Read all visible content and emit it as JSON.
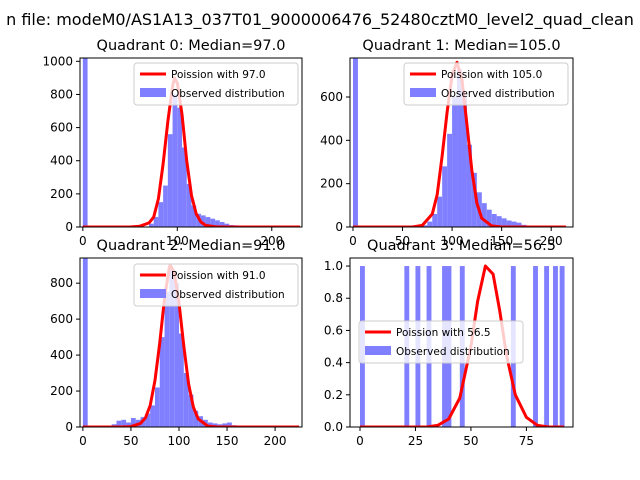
{
  "suptitle": "n file: modeM0/AS1A13_037T01_9000006476_52480cztM0_level2_quad_clean",
  "colors": {
    "fit": "#ff0000",
    "hist": "#7f7fff",
    "axis": "#000000"
  },
  "chart_data": [
    {
      "type": "histogram+line",
      "title": "Quadrant 0: Median=97.0",
      "xlim": [
        -3,
        232
      ],
      "ylim": [
        0,
        1020
      ],
      "xticks": [
        0,
        100,
        200
      ],
      "yticks": [
        0,
        200,
        400,
        600,
        800,
        1000
      ],
      "legend": [
        "Poission with 97.0",
        "Observed distribution"
      ],
      "legend_position": "upper-right",
      "hist": {
        "bin_width": 5,
        "bins": [
          [
            0,
            1020
          ],
          [
            70,
            20
          ],
          [
            75,
            60
          ],
          [
            80,
            150
          ],
          [
            85,
            250
          ],
          [
            90,
            560
          ],
          [
            95,
            800
          ],
          [
            100,
            720
          ],
          [
            105,
            480
          ],
          [
            110,
            260
          ],
          [
            115,
            130
          ],
          [
            120,
            80
          ],
          [
            125,
            70
          ],
          [
            130,
            60
          ],
          [
            135,
            50
          ],
          [
            140,
            40
          ],
          [
            145,
            30
          ],
          [
            150,
            20
          ],
          [
            155,
            12
          ],
          [
            160,
            10
          ],
          [
            165,
            8
          ],
          [
            170,
            5
          ],
          [
            180,
            4
          ],
          [
            200,
            3
          ]
        ]
      },
      "fit": {
        "peak": 900,
        "x": [
          0,
          50,
          60,
          70,
          75,
          80,
          85,
          90,
          95,
          97,
          100,
          105,
          110,
          115,
          120,
          125,
          130,
          140,
          150,
          230
        ],
        "y": [
          0,
          0,
          4,
          25,
          60,
          170,
          380,
          640,
          850,
          900,
          870,
          680,
          400,
          190,
          80,
          30,
          10,
          2,
          0,
          0
        ]
      }
    },
    {
      "type": "histogram+line",
      "title": "Quadrant 1: Median=105.0",
      "xlim": [
        -3,
        222
      ],
      "ylim": [
        0,
        780
      ],
      "xticks": [
        0,
        50,
        100,
        150,
        200
      ],
      "yticks": [
        0,
        200,
        400,
        600
      ],
      "legend": [
        "Poission with 105.0",
        "Observed distribution"
      ],
      "legend_position": "upper-right",
      "hist": {
        "bin_width": 5,
        "bins": [
          [
            0,
            780
          ],
          [
            70,
            8
          ],
          [
            75,
            25
          ],
          [
            80,
            60
          ],
          [
            85,
            140
          ],
          [
            90,
            280
          ],
          [
            95,
            430
          ],
          [
            100,
            600
          ],
          [
            105,
            730
          ],
          [
            110,
            600
          ],
          [
            115,
            380
          ],
          [
            120,
            250
          ],
          [
            125,
            160
          ],
          [
            130,
            110
          ],
          [
            135,
            80
          ],
          [
            140,
            60
          ],
          [
            145,
            50
          ],
          [
            150,
            40
          ],
          [
            155,
            30
          ],
          [
            160,
            25
          ],
          [
            165,
            20
          ],
          [
            170,
            10
          ]
        ]
      },
      "fit": {
        "peak": 760,
        "x": [
          0,
          60,
          70,
          80,
          85,
          90,
          95,
          100,
          105,
          110,
          115,
          120,
          125,
          130,
          140,
          150,
          215
        ],
        "y": [
          0,
          0,
          8,
          60,
          150,
          330,
          530,
          700,
          760,
          680,
          470,
          260,
          110,
          40,
          5,
          0,
          0
        ]
      }
    },
    {
      "type": "histogram+line",
      "title": "Quadrant 2: Median=91.0",
      "xlim": [
        -3,
        228
      ],
      "ylim": [
        0,
        940
      ],
      "xticks": [
        0,
        50,
        100,
        150,
        200
      ],
      "yticks": [
        0,
        200,
        400,
        600,
        800
      ],
      "legend": [
        "Poission with 91.0",
        "Observed distribution"
      ],
      "legend_position": "upper-right",
      "hist": {
        "bin_width": 5,
        "bins": [
          [
            0,
            940
          ],
          [
            30,
            15
          ],
          [
            35,
            35
          ],
          [
            40,
            40
          ],
          [
            45,
            25
          ],
          [
            50,
            50
          ],
          [
            55,
            40
          ],
          [
            60,
            55
          ],
          [
            65,
            75
          ],
          [
            70,
            120
          ],
          [
            75,
            220
          ],
          [
            80,
            500
          ],
          [
            85,
            750
          ],
          [
            90,
            880
          ],
          [
            95,
            800
          ],
          [
            100,
            520
          ],
          [
            105,
            300
          ],
          [
            110,
            180
          ],
          [
            115,
            90
          ],
          [
            120,
            60
          ],
          [
            125,
            40
          ],
          [
            130,
            25
          ],
          [
            135,
            20
          ],
          [
            140,
            15
          ],
          [
            145,
            20
          ],
          [
            150,
            25
          ],
          [
            155,
            10
          ],
          [
            160,
            8
          ],
          [
            165,
            5
          ],
          [
            170,
            5
          ],
          [
            175,
            4
          ],
          [
            180,
            3
          ]
        ]
      },
      "fit": {
        "peak": 900,
        "x": [
          0,
          40,
          50,
          60,
          65,
          70,
          75,
          80,
          85,
          90,
          91,
          95,
          100,
          105,
          110,
          115,
          120,
          130,
          140,
          225
        ],
        "y": [
          0,
          0,
          2,
          20,
          50,
          120,
          260,
          470,
          720,
          890,
          900,
          860,
          690,
          450,
          240,
          110,
          45,
          5,
          0,
          0
        ]
      }
    },
    {
      "type": "histogram+line",
      "title": "Quadrant 3: Median=56.5",
      "xlim": [
        -4.5,
        96
      ],
      "ylim": [
        0,
        1.05
      ],
      "xticks": [
        0,
        25,
        50,
        75
      ],
      "yticks": [
        0.0,
        0.2,
        0.4,
        0.6,
        0.8,
        1.0
      ],
      "legend": [
        "Poission with 56.5",
        "Observed distribution"
      ],
      "legend_position": "center-left",
      "hist": {
        "bin_width": 2.2,
        "bins": [
          [
            0,
            1
          ],
          [
            20,
            1
          ],
          [
            25,
            1
          ],
          [
            30,
            1
          ],
          [
            37,
            1
          ],
          [
            39,
            1
          ],
          [
            45,
            1
          ],
          [
            68,
            1
          ],
          [
            78,
            1
          ],
          [
            83,
            1
          ],
          [
            87,
            1
          ],
          [
            90,
            1
          ]
        ]
      },
      "fit": {
        "peak": 1.0,
        "x": [
          0,
          30,
          35,
          40,
          45,
          50,
          53,
          56.5,
          60,
          63,
          66,
          70,
          75,
          80,
          85,
          92
        ],
        "y": [
          0,
          0,
          0.01,
          0.05,
          0.18,
          0.5,
          0.78,
          1.0,
          0.95,
          0.72,
          0.45,
          0.2,
          0.06,
          0.01,
          0,
          0
        ]
      }
    }
  ]
}
